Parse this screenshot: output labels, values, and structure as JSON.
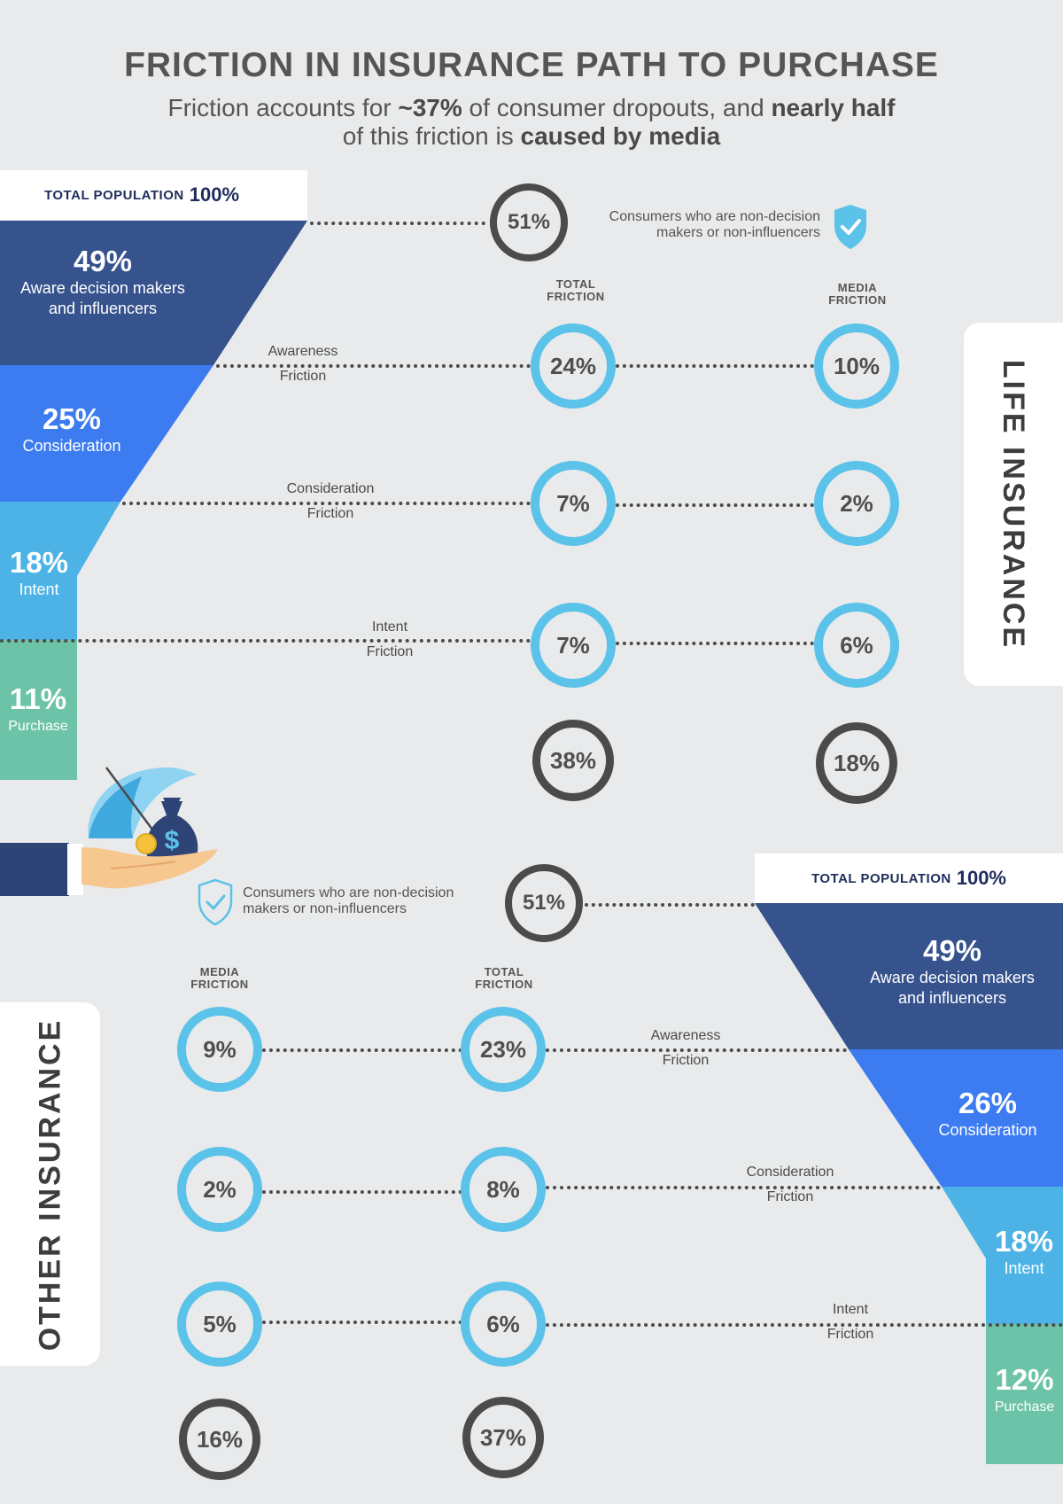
{
  "title": "FRICTION IN INSURANCE PATH TO PURCHASE",
  "subtitle": {
    "line1_a": "Friction accounts for ",
    "line1_b": "~37%",
    "line1_c": " of consumer dropouts, and ",
    "line1_d": "nearly half",
    "line2_a": "of this friction is ",
    "line2_b": "caused by media"
  },
  "life": {
    "tab_label": "LIFE INSURANCE",
    "population_label": "TOTAL POPULATION",
    "population_value": "100%",
    "non_decision_pct": "51%",
    "non_decision_note_1": "Consumers who are non-decision",
    "non_decision_note_2": "makers or non-influencers",
    "total_friction_head_1": "TOTAL",
    "total_friction_head_2": "FRICTION",
    "media_friction_head_1": "MEDIA",
    "media_friction_head_2": "FRICTION",
    "funnel": [
      {
        "pct": "49%",
        "label_1": "Aware decision makers",
        "label_2": "and influencers",
        "color": "#36538d"
      },
      {
        "pct": "25%",
        "label_1": "Consideration",
        "label_2": "",
        "color": "#3c7cf0"
      },
      {
        "pct": "18%",
        "label_1": "Intent",
        "label_2": "",
        "color": "#4db3e6"
      },
      {
        "pct": "11%",
        "label_1": "Purchase",
        "label_2": "",
        "color": "#6cc3a8"
      }
    ],
    "frictions": [
      {
        "label_1": "Awareness",
        "label_2": "Friction",
        "total": "24%",
        "media": "10%"
      },
      {
        "label_1": "Consideration",
        "label_2": "Friction",
        "total": "7%",
        "media": "2%"
      },
      {
        "label_1": "Intent",
        "label_2": "Friction",
        "total": "7%",
        "media": "6%"
      }
    ],
    "total_sum": "38%",
    "media_sum": "18%"
  },
  "other": {
    "tab_label": "OTHER INSURANCE",
    "population_label": "TOTAL POPULATION",
    "population_value": "100%",
    "non_decision_pct": "51%",
    "non_decision_note_1": "Consumers who are non-decision",
    "non_decision_note_2": "makers or non-influencers",
    "media_friction_head_1": "MEDIA",
    "media_friction_head_2": "FRICTION",
    "total_friction_head_1": "TOTAL",
    "total_friction_head_2": "FRICTION",
    "funnel": [
      {
        "pct": "49%",
        "label_1": "Aware decision makers",
        "label_2": "and influencers",
        "color": "#36538d"
      },
      {
        "pct": "26%",
        "label_1": "Consideration",
        "label_2": "",
        "color": "#3c7cf0"
      },
      {
        "pct": "18%",
        "label_1": "Intent",
        "label_2": "",
        "color": "#4db3e6"
      },
      {
        "pct": "12%",
        "label_1": "Purchase",
        "label_2": "",
        "color": "#6cc3a8"
      }
    ],
    "frictions": [
      {
        "label_1": "Awareness",
        "label_2": "Friction",
        "total": "23%",
        "media": "9%"
      },
      {
        "label_1": "Consideration",
        "label_2": "Friction",
        "total": "8%",
        "media": "2%"
      },
      {
        "label_1": "Intent",
        "label_2": "Friction",
        "total": "6%",
        "media": "5%"
      }
    ],
    "total_sum": "37%",
    "media_sum": "16%"
  },
  "icons": {
    "shield": "shield-check-icon",
    "illustration": "hand-umbrella-money-bag-illustration",
    "currency_symbol": "$"
  }
}
